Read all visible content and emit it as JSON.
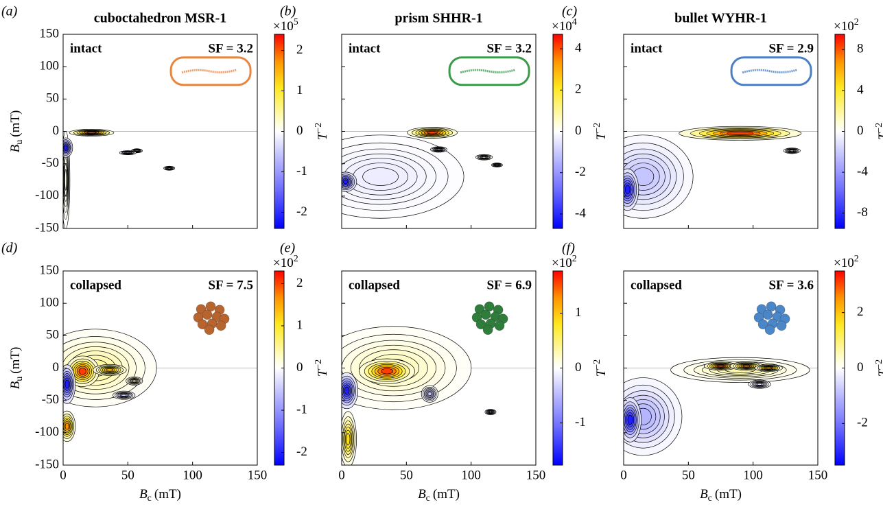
{
  "chart_data": [
    {
      "type": "forc",
      "panel": "(a)",
      "title": "cuboctahedron MSR-1",
      "annotation": "intact",
      "sf": "SF = 3.2",
      "xlim": [
        0,
        150
      ],
      "ylim": [
        -150,
        150
      ],
      "xticks": [
        0,
        50,
        100,
        150
      ],
      "yticks": [
        -150,
        -100,
        -50,
        0,
        50,
        100,
        150
      ],
      "show_xtick_labels": false,
      "show_ytick_labels": true,
      "ylabel": {
        "symbol": "B",
        "subscript": "u",
        "unit": "(mT)"
      },
      "zero_line": true,
      "clim": [
        -2.4,
        2.4
      ],
      "cticks": [
        -2,
        -1,
        0,
        1,
        2
      ],
      "cbar_scale": "×10",
      "cbar_exp": "5",
      "cbar_label": {
        "symbol": "T",
        "sup": "−2"
      },
      "inset": {
        "shape": "outline",
        "color": "#e8853e"
      },
      "peaks": [
        {
          "x": 2,
          "y": -75,
          "value": 0.15,
          "x_spread": 1.5,
          "y_spread": 35
        },
        {
          "x": 22,
          "y": -2,
          "value": 2.4,
          "x_spread": 8,
          "y_spread": 2.5
        },
        {
          "x": 2,
          "y": -25,
          "value": -2.4,
          "x_spread": 2.5,
          "y_spread": 7
        },
        {
          "x": 57,
          "y": -30,
          "value": 0.6,
          "x_spread": 2,
          "y_spread": 1.5
        },
        {
          "x": 50,
          "y": -33,
          "value": -0.4,
          "x_spread": 3,
          "y_spread": 1.5
        },
        {
          "x": 82,
          "y": -57,
          "value": 0.4,
          "x_spread": 2,
          "y_spread": 1.5
        }
      ]
    },
    {
      "type": "forc",
      "panel": "(b)",
      "title": "prism SHHR-1",
      "annotation": "intact",
      "sf": "SF = 3.2",
      "xlim": [
        0,
        150
      ],
      "ylim": [
        -150,
        150
      ],
      "xticks": [
        0,
        50,
        100,
        150
      ],
      "yticks": [
        -150,
        -100,
        -50,
        0,
        50,
        100,
        150
      ],
      "show_xtick_labels": false,
      "show_ytick_labels": false,
      "zero_line": true,
      "clim": [
        -4.7,
        4.7
      ],
      "cticks": [
        -4,
        -2,
        0,
        2,
        4
      ],
      "cbar_scale": "×10",
      "cbar_exp": "4",
      "cbar_label": {
        "symbol": "T",
        "sup": "−2"
      },
      "inset": {
        "shape": "outline",
        "color": "#3a9a48"
      },
      "peaks": [
        {
          "x": 30,
          "y": -70,
          "value": -0.4,
          "x_spread": 30,
          "y_spread": 30
        },
        {
          "x": 70,
          "y": -2,
          "value": 4.7,
          "x_spread": 9,
          "y_spread": 4
        },
        {
          "x": 3,
          "y": -78,
          "value": -4.7,
          "x_spread": 4,
          "y_spread": 7
        },
        {
          "x": 75,
          "y": -28,
          "value": -1.2,
          "x_spread": 3,
          "y_spread": 2
        },
        {
          "x": 110,
          "y": -40,
          "value": 0.4,
          "x_spread": 3,
          "y_spread": 2
        },
        {
          "x": 120,
          "y": -52,
          "value": -0.5,
          "x_spread": 2,
          "y_spread": 1.5
        }
      ]
    },
    {
      "type": "forc",
      "panel": "(c)",
      "title": "bullet WYHR-1",
      "annotation": "intact",
      "sf": "SF = 2.9",
      "xlim": [
        0,
        150
      ],
      "ylim": [
        -150,
        150
      ],
      "xticks": [
        0,
        50,
        100,
        150
      ],
      "yticks": [
        -150,
        -100,
        -50,
        0,
        50,
        100,
        150
      ],
      "show_xtick_labels": false,
      "show_ytick_labels": false,
      "zero_line": true,
      "clim": [
        -9.5,
        9.5
      ],
      "cticks": [
        -8,
        -4,
        0,
        4,
        8
      ],
      "cbar_scale": "×10",
      "cbar_exp": "2",
      "cbar_label": {
        "symbol": "T",
        "sup": "−2"
      },
      "inset": {
        "shape": "outline",
        "color": "#4a7fc4"
      },
      "peaks": [
        {
          "x": 15,
          "y": -70,
          "value": -2.5,
          "x_spread": 18,
          "y_spread": 30
        },
        {
          "x": 90,
          "y": -3,
          "value": 9.5,
          "x_spread": 22,
          "y_spread": 5
        },
        {
          "x": 3,
          "y": -90,
          "value": -9.5,
          "x_spread": 4,
          "y_spread": 15
        },
        {
          "x": 130,
          "y": -30,
          "value": -1.5,
          "x_spread": 3,
          "y_spread": 2
        }
      ]
    },
    {
      "type": "forc",
      "panel": "(d)",
      "annotation": "collapsed",
      "sf": "SF = 7.5",
      "xlim": [
        0,
        150
      ],
      "ylim": [
        -150,
        150
      ],
      "xticks": [
        0,
        50,
        100,
        150
      ],
      "yticks": [
        -150,
        -100,
        -50,
        0,
        50,
        100,
        150
      ],
      "show_xtick_labels": true,
      "show_ytick_labels": true,
      "xlabel": {
        "symbol": "B",
        "subscript": "c",
        "unit": "(mT)"
      },
      "ylabel": {
        "symbol": "B",
        "subscript": "u",
        "unit": "(mT)"
      },
      "zero_line": true,
      "clim": [
        -2.3,
        2.3
      ],
      "cticks": [
        -2,
        -1,
        0,
        1,
        2
      ],
      "cbar_scale": "×10",
      "cbar_exp": "2",
      "cbar_label": {
        "symbol": "T",
        "sup": "−2"
      },
      "inset": {
        "shape": "cluster",
        "color": "#b8642e"
      },
      "peaks": [
        {
          "x": 25,
          "y": 0,
          "value": 0.5,
          "x_spread": 22,
          "y_spread": 28
        },
        {
          "x": 15,
          "y": -5,
          "value": 2.3,
          "x_spread": 6,
          "y_spread": 11
        },
        {
          "x": 36,
          "y": -3,
          "value": 1.6,
          "x_spread": 6,
          "y_spread": 4
        },
        {
          "x": 3,
          "y": -25,
          "value": -2.3,
          "x_spread": 3,
          "y_spread": 14
        },
        {
          "x": 3,
          "y": -90,
          "value": 1.9,
          "x_spread": 3,
          "y_spread": 11
        },
        {
          "x": 47,
          "y": -42,
          "value": -0.5,
          "x_spread": 4,
          "y_spread": 3
        },
        {
          "x": 55,
          "y": -20,
          "value": 0.4,
          "x_spread": 3,
          "y_spread": 3
        }
      ]
    },
    {
      "type": "forc",
      "panel": "(e)",
      "annotation": "collapsed",
      "sf": "SF = 6.9",
      "xlim": [
        0,
        150
      ],
      "ylim": [
        -150,
        150
      ],
      "xticks": [
        0,
        50,
        100,
        150
      ],
      "yticks": [
        -150,
        -100,
        -50,
        0,
        50,
        100,
        150
      ],
      "show_xtick_labels": true,
      "show_ytick_labels": false,
      "xlabel": {
        "symbol": "B",
        "subscript": "c",
        "unit": "(mT)"
      },
      "zero_line": true,
      "clim": [
        -1.77,
        1.77
      ],
      "cticks": [
        -1,
        0,
        1
      ],
      "cbar_scale": "×10",
      "cbar_exp": "2",
      "cbar_label": {
        "symbol": "T",
        "sup": "−2"
      },
      "inset": {
        "shape": "cluster",
        "color": "#2e7d3a"
      },
      "peaks": [
        {
          "x": 40,
          "y": 0,
          "value": 0.3,
          "x_spread": 28,
          "y_spread": 30
        },
        {
          "x": 35,
          "y": -5,
          "value": 1.77,
          "x_spread": 10,
          "y_spread": 9
        },
        {
          "x": 4,
          "y": -35,
          "value": -1.77,
          "x_spread": 4,
          "y_spread": 13
        },
        {
          "x": 5,
          "y": -110,
          "value": 1,
          "x_spread": 3,
          "y_spread": 20
        },
        {
          "x": 68,
          "y": -40,
          "value": -0.5,
          "x_spread": 3,
          "y_spread": 6
        },
        {
          "x": 115,
          "y": -68,
          "value": -0.3,
          "x_spread": 2,
          "y_spread": 2
        }
      ]
    },
    {
      "type": "forc",
      "panel": "(f)",
      "annotation": "collapsed",
      "sf": "SF = 3.6",
      "xlim": [
        0,
        150
      ],
      "ylim": [
        -150,
        150
      ],
      "xticks": [
        0,
        50,
        100,
        150
      ],
      "yticks": [
        -150,
        -100,
        -50,
        0,
        50,
        100,
        150
      ],
      "show_xtick_labels": true,
      "show_ytick_labels": false,
      "xlabel": {
        "symbol": "B",
        "subscript": "c",
        "unit": "(mT)"
      },
      "zero_line": true,
      "clim": [
        -3.5,
        3.5
      ],
      "cticks": [
        -2,
        0,
        2
      ],
      "cbar_scale": "×10",
      "cbar_exp": "2",
      "cbar_label": {
        "symbol": "T",
        "sup": "−2"
      },
      "inset": {
        "shape": "cluster",
        "color": "#4a86c8"
      },
      "peaks": [
        {
          "x": 15,
          "y": -75,
          "value": -1.2,
          "x_spread": 14,
          "y_spread": 28
        },
        {
          "x": 90,
          "y": -3,
          "value": 0.7,
          "x_spread": 25,
          "y_spread": 9
        },
        {
          "x": 75,
          "y": 3,
          "value": 3.5,
          "x_spread": 6,
          "y_spread": 3
        },
        {
          "x": 95,
          "y": 3,
          "value": 3,
          "x_spread": 6,
          "y_spread": 3
        },
        {
          "x": 112,
          "y": 0,
          "value": 2.5,
          "x_spread": 5,
          "y_spread": 2.5
        },
        {
          "x": 5,
          "y": -80,
          "value": -3.5,
          "x_spread": 4,
          "y_spread": 16
        },
        {
          "x": 105,
          "y": -25,
          "value": -0.6,
          "x_spread": 4,
          "y_spread": 3
        }
      ]
    }
  ]
}
